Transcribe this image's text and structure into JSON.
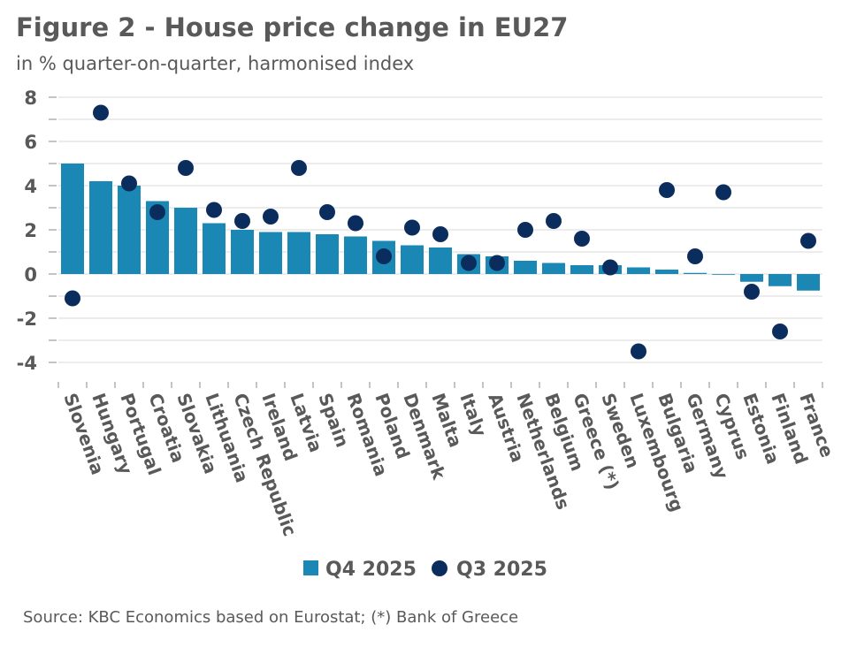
{
  "title": "Figure 2 - House price change in EU27",
  "subtitle": "in % quarter-on-quarter, harmonised index",
  "source": "Source: KBC Economics based on Eurostat; (*) Bank of Greece",
  "colors": {
    "q4": "#1b87b4",
    "q3": "#0b2d5e",
    "grid": "#d9d9d9"
  },
  "chart_data": {
    "type": "bar",
    "title": "Figure 2 - House price change in EU27",
    "ylabel": "in % quarter-on-quarter, harmonised index",
    "ylim": [
      -5,
      8
    ],
    "yticks": [
      8,
      6,
      4,
      2,
      0,
      -2,
      -4
    ],
    "grid": true,
    "legend_position": "bottom",
    "categories": [
      "Slovenia",
      "Hungary",
      "Portugal",
      "Croatia",
      "Slovakia",
      "Lithuania",
      "Czech Republic",
      "Ireland",
      "Latvia",
      "Spain",
      "Romania",
      "Poland",
      "Denmark",
      "Malta",
      "Italy",
      "Austria",
      "Netherlands",
      "Belgium",
      "Greece (*)",
      "Sweden",
      "Luxembourg",
      "Bulgaria",
      "Germany",
      "Cyprus",
      "Estonia",
      "Finland",
      "France"
    ],
    "series": [
      {
        "name": "Q4 2025",
        "type": "bar",
        "values": [
          5.0,
          4.2,
          4.0,
          3.3,
          3.0,
          2.3,
          2.0,
          1.9,
          1.9,
          1.8,
          1.7,
          1.5,
          1.3,
          1.2,
          0.9,
          0.8,
          0.6,
          0.5,
          0.4,
          0.4,
          0.3,
          0.2,
          0.05,
          0.0,
          -0.35,
          -0.55,
          -0.75
        ]
      },
      {
        "name": "Q3 2025",
        "type": "scatter",
        "values": [
          -1.1,
          7.3,
          4.1,
          2.8,
          4.8,
          2.9,
          2.4,
          2.6,
          4.8,
          2.8,
          2.3,
          0.8,
          2.1,
          1.8,
          0.5,
          0.5,
          2.0,
          2.4,
          1.6,
          0.3,
          -3.5,
          3.8,
          0.8,
          3.7,
          -0.8,
          -2.6,
          1.5
        ]
      }
    ]
  }
}
